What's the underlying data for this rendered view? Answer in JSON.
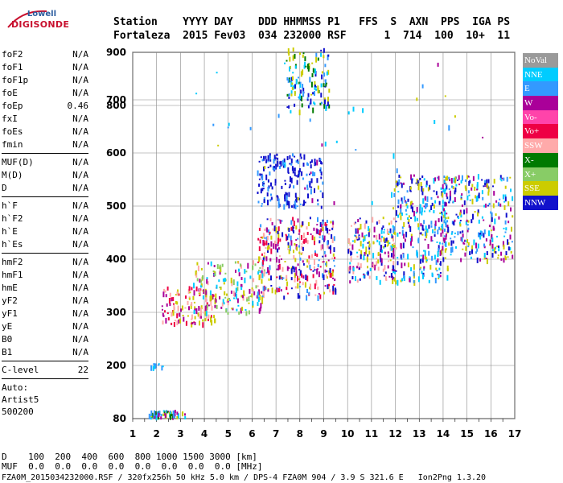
{
  "logo": {
    "line1": "Lowell",
    "line2": "DIGISONDE"
  },
  "header": {
    "labels": "Station    YYYY DAY    DDD HHMMSS P1   FFS  S  AXN  PPS  IGA PS",
    "values": "Fortaleza  2015 Fev03  034 232000 RSF      1  714  100  10+  11"
  },
  "params": {
    "group1": [
      {
        "k": "foF2",
        "v": "N/A"
      },
      {
        "k": "foF1",
        "v": "N/A"
      },
      {
        "k": "foF1p",
        "v": "N/A"
      },
      {
        "k": "foE",
        "v": "N/A"
      },
      {
        "k": "foEp",
        "v": "0.46"
      },
      {
        "k": "fxI",
        "v": "N/A"
      },
      {
        "k": "foEs",
        "v": "N/A"
      },
      {
        "k": "fmin",
        "v": "N/A"
      }
    ],
    "group2": [
      {
        "k": "MUF(D)",
        "v": "N/A"
      },
      {
        "k": "M(D)",
        "v": "N/A"
      },
      {
        "k": "D",
        "v": "N/A"
      }
    ],
    "group3": [
      {
        "k": "h`F",
        "v": "N/A"
      },
      {
        "k": "h`F2",
        "v": "N/A"
      },
      {
        "k": "h`E",
        "v": "N/A"
      },
      {
        "k": "h`Es",
        "v": "N/A"
      }
    ],
    "group4": [
      {
        "k": "hmF2",
        "v": "N/A"
      },
      {
        "k": "hmF1",
        "v": "N/A"
      },
      {
        "k": "hmE",
        "v": "N/A"
      },
      {
        "k": "yF2",
        "v": "N/A"
      },
      {
        "k": "yF1",
        "v": "N/A"
      },
      {
        "k": "yE",
        "v": "N/A"
      },
      {
        "k": "B0",
        "v": "N/A"
      },
      {
        "k": "B1",
        "v": "N/A"
      }
    ],
    "clevel": {
      "k": "C-level",
      "v": "22"
    },
    "auto": [
      "Auto:",
      "Artist5",
      "500200"
    ]
  },
  "legend": [
    {
      "label": "NoVal",
      "color": "#9a9a9a"
    },
    {
      "label": "NNE",
      "color": "#00ccff"
    },
    {
      "label": "E",
      "color": "#3399ff"
    },
    {
      "label": "W",
      "color": "#aa0099"
    },
    {
      "label": "Vo-",
      "color": "#ff44aa"
    },
    {
      "label": "Vo+",
      "color": "#ee0044"
    },
    {
      "label": "SSW",
      "color": "#ffaaaa"
    },
    {
      "label": "X-",
      "color": "#007a00"
    },
    {
      "label": "X+",
      "color": "#88cc66"
    },
    {
      "label": "SSE",
      "color": "#cccc00"
    },
    {
      "label": "NNW",
      "color": "#1111cc"
    }
  ],
  "footer": {
    "line1": "D    100  200  400  600  800 1000 1500 3000 [km]",
    "line2": "MUF  0.0  0.0  0.0  0.0  0.0  0.0  0.0  0.0 [MHz]",
    "line3": "FZA0M_2015034232000.RSF / 320fx256h 50 kHz 5.0 km / DPS-4 FZA0M 904 / 3.9 S 321.6 E   Ion2Png 1.3.20"
  },
  "chart_data": {
    "type": "scatter",
    "xlim": [
      1,
      17
    ],
    "ylim": [
      80,
      900
    ],
    "x_ticks": [
      1,
      2,
      3,
      4,
      5,
      6,
      7,
      8,
      9,
      10,
      11,
      12,
      13,
      14,
      15,
      16,
      17
    ],
    "y_ticks": [
      80,
      200,
      300,
      400,
      500,
      600,
      700,
      800,
      900
    ],
    "clusters": [
      {
        "name": "Es low",
        "x": [
          1.6,
          3.2
        ],
        "y": [
          85,
          100
        ],
        "colors": [
          "#cccc00",
          "#3399ff",
          "#00ccff",
          "#aa0099",
          "#007a00"
        ],
        "n": 60
      },
      {
        "name": "Es 200",
        "x": [
          1.7,
          2.4
        ],
        "y": [
          198,
          205
        ],
        "colors": [
          "#00ccff",
          "#3399ff"
        ],
        "n": 10
      },
      {
        "name": "F trace low",
        "x": [
          2.2,
          4.5
        ],
        "y": [
          280,
          350
        ],
        "colors": [
          "#ffaaaa",
          "#aa0099",
          "#cccc00",
          "#ee0044"
        ],
        "n": 130
      },
      {
        "name": "F lower",
        "x": [
          3.5,
          6.5
        ],
        "y": [
          300,
          400
        ],
        "colors": [
          "#cccc00",
          "#ffaaaa",
          "#aa0099",
          "#88cc66",
          "#00ccff"
        ],
        "n": 170
      },
      {
        "name": "F mid",
        "x": [
          6.2,
          9.5
        ],
        "y": [
          330,
          480
        ],
        "colors": [
          "#1111cc",
          "#cccc00",
          "#ffaaaa",
          "#aa0099",
          "#3399ff",
          "#ee0044"
        ],
        "n": 320
      },
      {
        "name": "NNW high",
        "x": [
          6.2,
          9.0
        ],
        "y": [
          500,
          600
        ],
        "colors": [
          "#1111cc",
          "#1111cc",
          "#3399ff"
        ],
        "n": 170
      },
      {
        "name": "Spread F top",
        "x": [
          7.4,
          9.2
        ],
        "y": [
          680,
          880
        ],
        "colors": [
          "#00ccff",
          "#cccc00",
          "#1111cc",
          "#3399ff",
          "#007a00"
        ],
        "n": 130
      },
      {
        "name": "F 10-12",
        "x": [
          10,
          12
        ],
        "y": [
          360,
          480
        ],
        "colors": [
          "#cccc00",
          "#ffaaaa",
          "#aa0099",
          "#00ccff",
          "#1111cc"
        ],
        "n": 170
      },
      {
        "name": "F 12-14",
        "x": [
          11.8,
          14.2
        ],
        "y": [
          360,
          560
        ],
        "colors": [
          "#1111cc",
          "#00ccff",
          "#3399ff",
          "#aa0099",
          "#cccc00"
        ],
        "n": 300
      },
      {
        "name": "F 14-16.9",
        "x": [
          14,
          16.9
        ],
        "y": [
          400,
          560
        ],
        "colors": [
          "#aa0099",
          "#00ccff",
          "#3399ff",
          "#1111cc",
          "#cccc00"
        ],
        "n": 260
      },
      {
        "name": "Scattered",
        "x": [
          3,
          16
        ],
        "y": [
          500,
          780
        ],
        "colors": [
          "#3399ff",
          "#aa0099",
          "#cccc00",
          "#00ccff"
        ],
        "n": 45
      }
    ]
  }
}
